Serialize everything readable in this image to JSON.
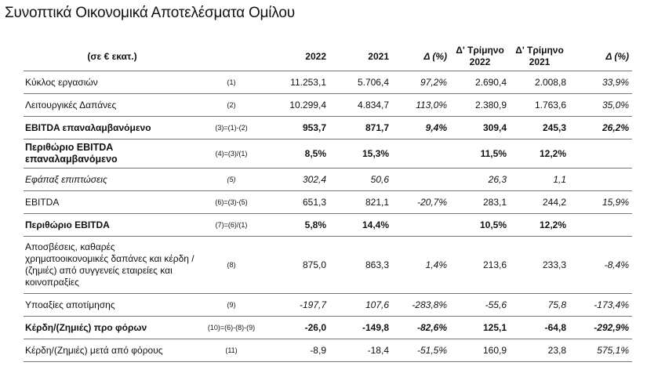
{
  "title": "Συνοπτικά Οικονομικά Αποτελέσματα Ομίλου",
  "header": {
    "label": "(σε € εκατ.)",
    "y2022": "2022",
    "y2021": "2021",
    "delta": "Δ (%)",
    "q2022_line1": "Δ' Τρίμηνο",
    "q2022_line2": "2022",
    "q2021_line1": "Δ' Τρίμηνο",
    "q2021_line2": "2021",
    "qdelta": "Δ (%)"
  },
  "rows": [
    {
      "label": "Κύκλος εργασιών",
      "code": "(1)",
      "y2022": "11.253,1",
      "y2021": "5.706,4",
      "delta": "97,2%",
      "q2022": "2.690,4",
      "q2021": "2.008,8",
      "qdelta": "33,9%"
    },
    {
      "label": "Λειτουργικές Δαπάνες",
      "code": "(2)",
      "y2022": "10.299,4",
      "y2021": "4.834,7",
      "delta": "113,0%",
      "q2022": "2.380,9",
      "q2021": "1.763,6",
      "qdelta": "35,0%"
    },
    {
      "label": "EBITDA επαναλαμβανόμενο",
      "code": "(3)=(1)-(2)",
      "y2022": "953,7",
      "y2021": "871,7",
      "delta": "9,4%",
      "q2022": "309,4",
      "q2021": "245,3",
      "qdelta": "26,2%"
    },
    {
      "label": "Περιθώριο EBITDA επαναλαμβανόμενο",
      "code": "(4)=(3)/(1)",
      "y2022": "8,5%",
      "y2021": "15,3%",
      "delta": "",
      "q2022": "11,5%",
      "q2021": "12,2%",
      "qdelta": ""
    },
    {
      "label": "Εφάπαξ επιπτώσεις",
      "code": "(5)",
      "y2022": "302,4",
      "y2021": "50,6",
      "delta": "",
      "q2022": "26,3",
      "q2021": "1,1",
      "qdelta": ""
    },
    {
      "label": "EBITDA",
      "code": "(6)=(3)-(5)",
      "y2022": "651,3",
      "y2021": "821,1",
      "delta": "-20,7%",
      "q2022": "283,1",
      "q2021": "244,2",
      "qdelta": "15,9%"
    },
    {
      "label": "Περιθώριο EBITDA",
      "code": "(7)=(6)/(1)",
      "y2022": "5,8%",
      "y2021": "14,4%",
      "delta": "",
      "q2022": "10,5%",
      "q2021": "12,2%",
      "qdelta": ""
    },
    {
      "label": "Αποσβέσεις, καθαρές χρηματοοικονομικές δαπάνες και κέρδη / (ζημιές)  από συγγενείς εταιρείες και κοινοπραξίες",
      "code": "(8)",
      "y2022": "875,0",
      "y2021": "863,3",
      "delta": "1,4%",
      "q2022": "213,6",
      "q2021": "233,3",
      "qdelta": "-8,4%"
    },
    {
      "label": "Υποαξίες αποτίμησης",
      "code": "(9)",
      "y2022": "-197,7",
      "y2021": "107,6",
      "delta": "-283,8%",
      "q2022": "-55,6",
      "q2021": "75,8",
      "qdelta": "-173,4%"
    },
    {
      "label": "Κέρδη/(Ζημιές) προ φόρων",
      "code": "(10)=(6)-(8)-(9)",
      "y2022": "-26,0",
      "y2021": "-149,8",
      "delta": "-82,6%",
      "q2022": "125,1",
      "q2021": "-64,8",
      "qdelta": "-292,9%"
    },
    {
      "label": "Κέρδη/(Ζημιές) μετά από φόρους",
      "code": "(11)",
      "y2022": "-8,9",
      "y2021": "-18,4",
      "delta": "-51,5%",
      "q2022": "160,9",
      "q2021": "23,8",
      "qdelta": "575,1%"
    }
  ]
}
